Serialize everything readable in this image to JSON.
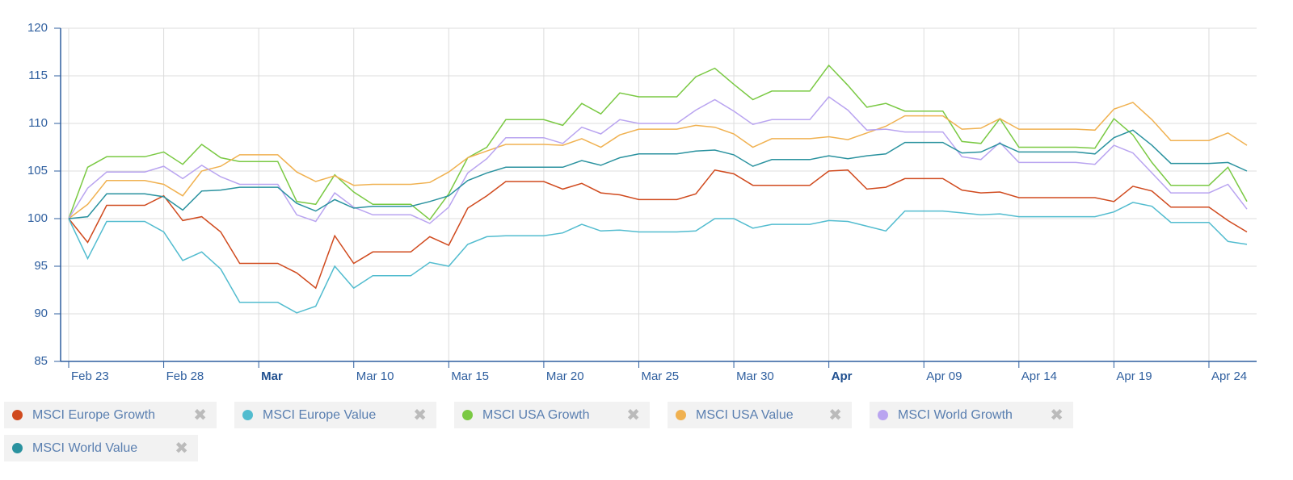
{
  "chart_data": {
    "type": "line",
    "x": [
      "Feb 23",
      "Feb 24",
      "Feb 25",
      "Feb 26",
      "Feb 27",
      "Feb 28",
      "Mar 01",
      "Mar 02",
      "Mar 03",
      "Mar 04",
      "Mar 05",
      "Mar 06",
      "Mar 07",
      "Mar 08",
      "Mar 09",
      "Mar 10",
      "Mar 11",
      "Mar 12",
      "Mar 13",
      "Mar 14",
      "Mar 15",
      "Mar 16",
      "Mar 17",
      "Mar 18",
      "Mar 19",
      "Mar 20",
      "Mar 21",
      "Mar 22",
      "Mar 23",
      "Mar 24",
      "Mar 25",
      "Mar 26",
      "Mar 27",
      "Mar 28",
      "Mar 29",
      "Mar 30",
      "Mar 31",
      "Apr 01",
      "Apr 02",
      "Apr 03",
      "Apr 04",
      "Apr 05",
      "Apr 06",
      "Apr 07",
      "Apr 08",
      "Apr 09",
      "Apr 10",
      "Apr 11",
      "Apr 12",
      "Apr 13",
      "Apr 14",
      "Apr 15",
      "Apr 16",
      "Apr 17",
      "Apr 18",
      "Apr 19",
      "Apr 20",
      "Apr 21",
      "Apr 22",
      "Apr 23",
      "Apr 24",
      "Apr 25",
      "Apr 26"
    ],
    "xticks": [
      "Feb 23",
      "Feb 28",
      {
        "value": "Mar 05",
        "label": "Mar"
      },
      "Mar 10",
      "Mar 15",
      "Mar 20",
      "Mar 25",
      "Mar 30",
      {
        "value": "Apr 04",
        "label": "Apr"
      },
      "Apr 09",
      "Apr 14",
      "Apr 19",
      "Apr 24"
    ],
    "ylim": [
      85,
      120
    ],
    "yticks": [
      85,
      90,
      95,
      100,
      105,
      110,
      115,
      120
    ],
    "grid": true,
    "series": [
      {
        "name": "MSCI Europe Growth",
        "color": "#d04a1e",
        "values": [
          100,
          97.5,
          101.4,
          101.4,
          101.4,
          102.4,
          99.8,
          100.2,
          98.6,
          95.3,
          95.3,
          95.3,
          94.3,
          92.7,
          98.2,
          95.3,
          96.5,
          96.5,
          96.5,
          98.1,
          97.2,
          101.1,
          102.4,
          103.9,
          103.9,
          103.9,
          103.1,
          103.7,
          102.7,
          102.5,
          102.0,
          102.0,
          102.0,
          102.6,
          105.1,
          104.7,
          103.5,
          103.5,
          103.5,
          103.5,
          105.0,
          105.1,
          103.1,
          103.3,
          104.2,
          104.2,
          104.2,
          103.0,
          102.7,
          102.8,
          102.2,
          102.2,
          102.2,
          102.2,
          102.2,
          101.8,
          103.4,
          102.9,
          101.2,
          101.2,
          101.2,
          99.8,
          98.6
        ]
      },
      {
        "name": "MSCI Europe Value",
        "color": "#52bccf",
        "values": [
          100,
          95.8,
          99.7,
          99.7,
          99.7,
          98.6,
          95.6,
          96.5,
          94.7,
          91.2,
          91.2,
          91.2,
          90.1,
          90.8,
          95.0,
          92.7,
          94.0,
          94.0,
          94.0,
          95.4,
          95.0,
          97.3,
          98.1,
          98.2,
          98.2,
          98.2,
          98.5,
          99.4,
          98.7,
          98.8,
          98.6,
          98.6,
          98.6,
          98.7,
          100.0,
          100.0,
          99.0,
          99.4,
          99.4,
          99.4,
          99.8,
          99.7,
          99.2,
          98.7,
          100.8,
          100.8,
          100.8,
          100.6,
          100.4,
          100.5,
          100.2,
          100.2,
          100.2,
          100.2,
          100.2,
          100.7,
          101.7,
          101.3,
          99.6,
          99.6,
          99.6,
          97.6,
          97.3
        ]
      },
      {
        "name": "MSCI USA Growth",
        "color": "#7ac943",
        "values": [
          100,
          105.4,
          106.5,
          106.5,
          106.5,
          107.0,
          105.7,
          107.8,
          106.4,
          106.0,
          106.0,
          106.0,
          101.8,
          101.5,
          104.6,
          102.8,
          101.5,
          101.5,
          101.5,
          99.9,
          102.6,
          106.4,
          107.5,
          110.4,
          110.4,
          110.4,
          109.8,
          112.1,
          111.0,
          113.2,
          112.8,
          112.8,
          112.8,
          114.9,
          115.8,
          114.1,
          112.5,
          113.4,
          113.4,
          113.4,
          116.1,
          114.0,
          111.7,
          112.1,
          111.3,
          111.3,
          111.3,
          108.1,
          107.9,
          110.5,
          107.5,
          107.5,
          107.5,
          107.5,
          107.4,
          110.5,
          108.8,
          105.9,
          103.5,
          103.5,
          103.5,
          105.4,
          101.8
        ]
      },
      {
        "name": "MSCI USA Value",
        "color": "#f0b150",
        "values": [
          100,
          101.5,
          104.0,
          104.0,
          104.0,
          103.6,
          102.4,
          105.0,
          105.5,
          106.7,
          106.7,
          106.7,
          104.9,
          103.9,
          104.5,
          103.5,
          103.6,
          103.6,
          103.6,
          103.8,
          104.9,
          106.4,
          107.1,
          107.8,
          107.8,
          107.8,
          107.7,
          108.4,
          107.5,
          108.8,
          109.4,
          109.4,
          109.4,
          109.8,
          109.6,
          108.9,
          107.5,
          108.4,
          108.4,
          108.4,
          108.6,
          108.3,
          109.0,
          109.7,
          110.8,
          110.8,
          110.8,
          109.4,
          109.5,
          110.5,
          109.4,
          109.4,
          109.4,
          109.4,
          109.3,
          111.5,
          112.2,
          110.4,
          108.2,
          108.2,
          108.2,
          109.0,
          107.7
        ]
      },
      {
        "name": "MSCI World Growth",
        "color": "#b9a4f0",
        "values": [
          100,
          103.2,
          104.9,
          104.9,
          104.9,
          105.5,
          104.2,
          105.6,
          104.4,
          103.6,
          103.6,
          103.6,
          100.4,
          99.7,
          102.7,
          101.2,
          100.4,
          100.4,
          100.4,
          99.5,
          101.2,
          104.8,
          106.3,
          108.5,
          108.5,
          108.5,
          107.9,
          109.6,
          108.9,
          110.4,
          110.0,
          110.0,
          110.0,
          111.4,
          112.5,
          111.3,
          109.9,
          110.4,
          110.4,
          110.4,
          112.8,
          111.4,
          109.3,
          109.4,
          109.1,
          109.1,
          109.1,
          106.5,
          106.2,
          108.0,
          105.9,
          105.9,
          105.9,
          105.9,
          105.7,
          107.7,
          106.9,
          104.8,
          102.7,
          102.7,
          102.7,
          103.6,
          101.0
        ]
      },
      {
        "name": "MSCI World Value",
        "color": "#2a929f",
        "values": [
          100,
          100.2,
          102.6,
          102.6,
          102.6,
          102.3,
          100.9,
          102.9,
          103.0,
          103.3,
          103.3,
          103.3,
          101.6,
          100.8,
          102.0,
          101.1,
          101.3,
          101.3,
          101.3,
          101.8,
          102.4,
          104.0,
          104.8,
          105.4,
          105.4,
          105.4,
          105.4,
          106.1,
          105.6,
          106.4,
          106.8,
          106.8,
          106.8,
          107.1,
          107.2,
          106.7,
          105.5,
          106.2,
          106.2,
          106.2,
          106.6,
          106.3,
          106.6,
          106.8,
          108.0,
          108.0,
          108.0,
          106.9,
          107.0,
          107.9,
          107.0,
          107.0,
          107.0,
          107.0,
          106.8,
          108.5,
          109.3,
          107.7,
          105.8,
          105.8,
          105.8,
          105.9,
          105.0
        ]
      }
    ]
  }
}
